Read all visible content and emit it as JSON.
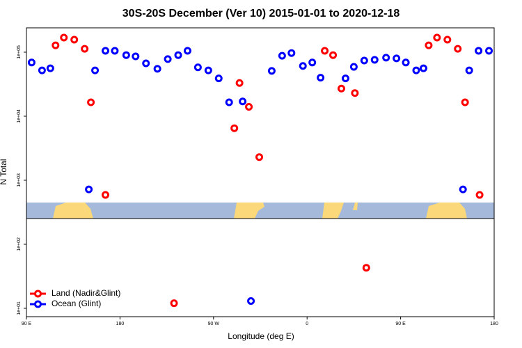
{
  "chart_data": {
    "type": "scatter",
    "title": "30S-20S December (Ver 10)   2015-01-01 to 2020-12-18",
    "x_label": "Longitude (deg E)",
    "y_label": "N Total",
    "log_y": true,
    "legend": "lower left",
    "xlim": [
      90,
      540
    ],
    "xticks": [
      {
        "value": 90,
        "label": "90 E"
      },
      180,
      {
        "value": 270,
        "label": "90 W"
      },
      {
        "value": 360,
        "label": "0"
      },
      {
        "value": 450,
        "label": "90 E"
      },
      {
        "value": 540,
        "label": "180"
      }
    ],
    "ylim": [
      7.4,
      240000
    ],
    "yticks": [
      {
        "value": 100000,
        "label": "1e+05"
      },
      {
        "value": 10000,
        "label": "1e+04"
      },
      {
        "value": 1000,
        "label": "1e+03"
      },
      {
        "value": 100,
        "label": "1e+02"
      },
      {
        "value": 10,
        "label": "1e+01"
      }
    ],
    "series": [
      {
        "name": "Land (Nadir&Glint)",
        "color": "#ff0000",
        "x": [
          118,
          126,
          136,
          146,
          152,
          166,
          232,
          290,
          295,
          304,
          314,
          377,
          385,
          393,
          406,
          417,
          477,
          485,
          495,
          505,
          512,
          526
        ],
        "values": [
          128000,
          169000,
          157000,
          113000,
          16500,
          590,
          12,
          6500,
          33000,
          14000,
          2300,
          105000,
          90000,
          27000,
          23000,
          43,
          128000,
          169000,
          157000,
          113000,
          16500,
          590
        ]
      },
      {
        "name": "Ocean (Glint)",
        "color": "#0000ff",
        "x": [
          95,
          105,
          113,
          150,
          156,
          166,
          175,
          186,
          195,
          205,
          216,
          226,
          236,
          245,
          255,
          265,
          275,
          285,
          298,
          306,
          326,
          336,
          345,
          356,
          365,
          373,
          397,
          405,
          415,
          425,
          436,
          446,
          455,
          465,
          472,
          510,
          516,
          525,
          535
        ],
        "values": [
          69000,
          52000,
          56000,
          720,
          52000,
          105000,
          105000,
          90000,
          86000,
          67000,
          55000,
          78000,
          90000,
          105000,
          58000,
          52000,
          39000,
          16500,
          17000,
          13,
          51000,
          88000,
          97000,
          61000,
          69000,
          40000,
          39000,
          59000,
          74000,
          76000,
          82000,
          80000,
          69000,
          52000,
          56000,
          720,
          52000,
          105000,
          105000
        ]
      }
    ]
  }
}
